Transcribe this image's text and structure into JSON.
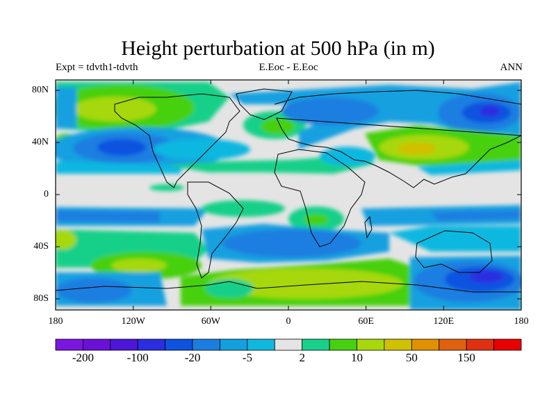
{
  "title": "Height perturbation at 500 hPa (in m)",
  "subtitle_left": "Expt = tdvth1-tdvth",
  "subtitle_center": "E.Eoc - E.Eoc",
  "subtitle_right": "ANN",
  "lat_labels": [
    "80N",
    "40N",
    "0",
    "40S",
    "80S"
  ],
  "lon_labels": [
    "180",
    "120W",
    "60W",
    "0",
    "60E",
    "120E",
    "180"
  ],
  "colorbar": {
    "labels": [
      "-200",
      "-100",
      "-20",
      "-5",
      "2",
      "10",
      "50",
      "150"
    ],
    "colors": [
      "#7a16e0",
      "#6a10d8",
      "#4d16d8",
      "#2a2ee0",
      "#0e52e0",
      "#1a7ee0",
      "#13a0e0",
      "#10b8e0",
      "#e4e4e4",
      "#18d089",
      "#47d010",
      "#a6d80c",
      "#d0c000",
      "#e09000",
      "#e06010",
      "#e03010",
      "#e80000"
    ]
  }
}
